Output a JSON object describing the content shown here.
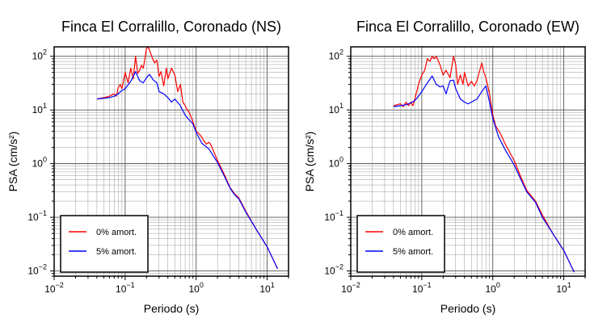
{
  "chart_data": [
    {
      "type": "line",
      "title": "Finca El Corralillo, Coronado (NS)",
      "xlabel": "Periodo (s)",
      "ylabel": "PSA (cm/s²)",
      "xscale": "log",
      "yscale": "log",
      "xlim": [
        0.01,
        20
      ],
      "ylim": [
        0.008,
        150
      ],
      "xticks": [
        {
          "base": "10",
          "exp": "−2"
        },
        {
          "base": "10",
          "exp": "−1"
        },
        {
          "base": "10",
          "exp": "0"
        },
        {
          "base": "10",
          "exp": "1"
        }
      ],
      "yticks": [
        {
          "base": "10",
          "exp": "−2"
        },
        {
          "base": "10",
          "exp": "−1"
        },
        {
          "base": "10",
          "exp": "0"
        },
        {
          "base": "10",
          "exp": "1"
        },
        {
          "base": "10",
          "exp": "2"
        }
      ],
      "grid": true,
      "legend": "bottom-left",
      "series": [
        {
          "name": "0% amort.",
          "color": "#ff0000",
          "x": [
            0.04,
            0.05,
            0.06,
            0.07,
            0.075,
            0.08,
            0.085,
            0.09,
            0.1,
            0.11,
            0.12,
            0.13,
            0.14,
            0.15,
            0.16,
            0.17,
            0.18,
            0.19,
            0.2,
            0.21,
            0.22,
            0.24,
            0.26,
            0.28,
            0.3,
            0.32,
            0.35,
            0.38,
            0.4,
            0.45,
            0.5,
            0.55,
            0.6,
            0.65,
            0.7,
            0.75,
            0.8,
            0.9,
            1.0,
            1.1,
            1.2,
            1.3,
            1.4,
            1.5,
            1.6,
            2.0,
            2.5,
            3.0,
            3.5,
            4.0,
            5.0,
            7.0,
            10.0,
            14.0
          ],
          "y": [
            16,
            17,
            18,
            20,
            18,
            26,
            30,
            25,
            50,
            32,
            60,
            38,
            100,
            48,
            55,
            68,
            60,
            90,
            140,
            150,
            130,
            95,
            75,
            85,
            42,
            52,
            28,
            60,
            38,
            60,
            45,
            22,
            30,
            14,
            12,
            10,
            9,
            6,
            4,
            3.6,
            3.1,
            2.6,
            2.3,
            2.5,
            2.3,
            1.15,
            0.62,
            0.36,
            0.27,
            0.23,
            0.13,
            0.06,
            0.028,
            0.011
          ]
        },
        {
          "name": "5% amort.",
          "color": "#0000ff",
          "x": [
            0.04,
            0.05,
            0.06,
            0.07,
            0.08,
            0.09,
            0.1,
            0.12,
            0.14,
            0.16,
            0.18,
            0.2,
            0.22,
            0.25,
            0.28,
            0.3,
            0.35,
            0.4,
            0.45,
            0.5,
            0.6,
            0.7,
            0.8,
            0.9,
            1.0,
            1.2,
            1.5,
            2.0,
            2.5,
            3.0,
            3.5,
            4.0,
            5.0,
            7.0,
            10.0,
            14.0
          ],
          "y": [
            16,
            16.5,
            17,
            18,
            20,
            23,
            25,
            34,
            52,
            35,
            32,
            40,
            46,
            36,
            32,
            22,
            20,
            17,
            14,
            16,
            12,
            8,
            6.5,
            5.5,
            3.8,
            2.4,
            1.9,
            1.05,
            0.58,
            0.35,
            0.26,
            0.22,
            0.125,
            0.06,
            0.028,
            0.011
          ]
        }
      ]
    },
    {
      "type": "line",
      "title": "Finca El Corralillo, Coronado (EW)",
      "xlabel": "Periodo (s)",
      "ylabel": "PSA (cm/s²)",
      "xscale": "log",
      "yscale": "log",
      "xlim": [
        0.01,
        20
      ],
      "ylim": [
        0.008,
        150
      ],
      "xticks": [
        {
          "base": "10",
          "exp": "−2"
        },
        {
          "base": "10",
          "exp": "−1"
        },
        {
          "base": "10",
          "exp": "0"
        },
        {
          "base": "10",
          "exp": "1"
        }
      ],
      "yticks": [
        {
          "base": "10",
          "exp": "−2"
        },
        {
          "base": "10",
          "exp": "−1"
        },
        {
          "base": "10",
          "exp": "0"
        },
        {
          "base": "10",
          "exp": "1"
        },
        {
          "base": "10",
          "exp": "2"
        }
      ],
      "grid": true,
      "legend": "bottom-left",
      "series": [
        {
          "name": "0% amort.",
          "color": "#ff0000",
          "x": [
            0.04,
            0.045,
            0.05,
            0.055,
            0.06,
            0.065,
            0.07,
            0.075,
            0.08,
            0.09,
            0.1,
            0.11,
            0.12,
            0.13,
            0.14,
            0.15,
            0.16,
            0.18,
            0.2,
            0.22,
            0.25,
            0.28,
            0.3,
            0.32,
            0.35,
            0.38,
            0.4,
            0.45,
            0.5,
            0.55,
            0.6,
            0.7,
            0.75,
            0.8,
            0.9,
            1.0,
            1.1,
            1.2,
            1.3,
            1.5,
            2.0,
            2.5,
            3.0,
            4.0,
            5.0,
            7.0,
            10.0,
            14.0
          ],
          "y": [
            12,
            12.5,
            13,
            11.5,
            14,
            12,
            14,
            12,
            16,
            30,
            45,
            55,
            90,
            80,
            100,
            90,
            100,
            70,
            45,
            55,
            40,
            100,
            70,
            30,
            45,
            30,
            50,
            28,
            34,
            28,
            35,
            75,
            50,
            40,
            20,
            8,
            5,
            4.2,
            3.5,
            2.3,
            1.15,
            0.55,
            0.32,
            0.2,
            0.11,
            0.05,
            0.024,
            0.0095
          ]
        },
        {
          "name": "5% amort.",
          "color": "#0000ff",
          "x": [
            0.04,
            0.05,
            0.06,
            0.07,
            0.08,
            0.09,
            0.1,
            0.12,
            0.14,
            0.16,
            0.18,
            0.2,
            0.22,
            0.25,
            0.28,
            0.3,
            0.35,
            0.4,
            0.45,
            0.5,
            0.6,
            0.7,
            0.8,
            0.9,
            1.0,
            1.2,
            1.5,
            2.0,
            2.5,
            3.0,
            4.0,
            5.0,
            7.0,
            10.0,
            14.0
          ],
          "y": [
            11.5,
            12,
            12.5,
            13.5,
            15,
            18,
            22,
            32,
            43,
            30,
            27,
            28,
            20,
            35,
            36,
            25,
            16,
            14,
            13,
            14,
            16,
            22,
            28,
            14,
            7,
            3.2,
            1.8,
            0.95,
            0.5,
            0.3,
            0.19,
            0.1,
            0.05,
            0.024,
            0.0095
          ]
        }
      ]
    }
  ]
}
